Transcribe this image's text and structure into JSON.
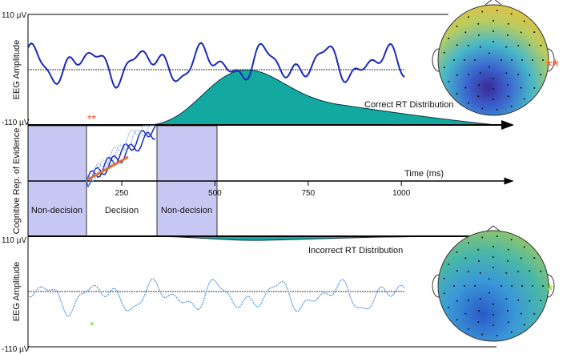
{
  "panels": {
    "top": {
      "y_label": "EEG Amplitude",
      "max_label": "110 µV",
      "min_label": "-110 µV",
      "distribution_label": "Correct RT Distribution",
      "markers": [
        "**",
        "**"
      ]
    },
    "middle": {
      "y_label": "Cognitive Rep. of Evidence",
      "axis_label": "Time (ms)",
      "ticks": [
        "250",
        "500",
        "750",
        "1000"
      ],
      "stages": [
        "Non-decision",
        "Decision",
        "Non-decision"
      ]
    },
    "bottom": {
      "y_label": "EEG Amplitude",
      "max_label": "110 µV",
      "min_label": "-110 µV",
      "distribution_label": "Incorrect RT Distribution",
      "markers": [
        "*",
        "*"
      ]
    }
  }
}
